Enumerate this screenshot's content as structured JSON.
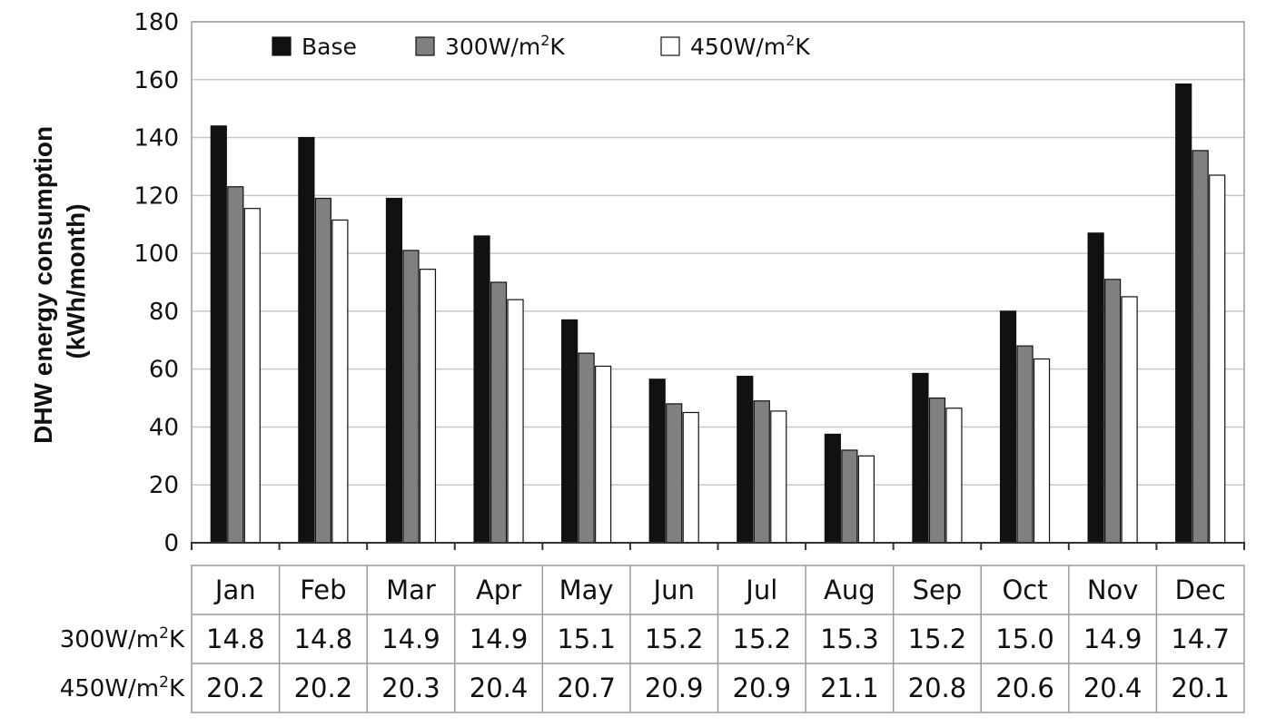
{
  "chart_data": {
    "type": "bar",
    "ylabel_lines": [
      "DHW energy consumption",
      "(kWh/month)"
    ],
    "xlabel": "",
    "ylim": [
      0,
      180
    ],
    "yticks": [
      0,
      20,
      40,
      60,
      80,
      100,
      120,
      140,
      160,
      180
    ],
    "grid": true,
    "legend_position": "top",
    "categories": [
      "Jan",
      "Feb",
      "Mar",
      "Apr",
      "May",
      "Jun",
      "Jul",
      "Aug",
      "Sep",
      "Oct",
      "Nov",
      "Dec"
    ],
    "series": [
      {
        "name": "Base",
        "name_main": "Base",
        "name_sup": "",
        "name_tail": "",
        "color": "#111111",
        "values": [
          144,
          140,
          119,
          106,
          77,
          56.5,
          57.5,
          37.5,
          58.5,
          80,
          107,
          158.5
        ]
      },
      {
        "name": "300W/m2K",
        "name_main": "300W/m",
        "name_sup": "2",
        "name_tail": "K",
        "color": "#808080",
        "values": [
          123,
          119,
          101,
          90,
          65.5,
          48,
          49,
          32,
          50,
          68,
          91,
          135.5
        ]
      },
      {
        "name": "450W/m2K",
        "name_main": "450W/m",
        "name_sup": "2",
        "name_tail": "K",
        "color": "#ffffff",
        "values": [
          115.5,
          111.5,
          94.5,
          84,
          61,
          45,
          45.5,
          30,
          46.5,
          63.5,
          85,
          127
        ]
      }
    ],
    "table": {
      "rows": [
        {
          "label_main": "300W/m",
          "label_sup": "2",
          "label_tail": "K",
          "values": [
            "14.8",
            "14.8",
            "14.9",
            "14.9",
            "15.1",
            "15.2",
            "15.2",
            "15.3",
            "15.2",
            "15.0",
            "14.9",
            "14.7"
          ]
        },
        {
          "label_main": "450W/m",
          "label_sup": "2",
          "label_tail": "K",
          "values": [
            "20.2",
            "20.2",
            "20.3",
            "20.4",
            "20.7",
            "20.9",
            "20.9",
            "21.1",
            "20.8",
            "20.6",
            "20.4",
            "20.1"
          ]
        }
      ]
    }
  }
}
